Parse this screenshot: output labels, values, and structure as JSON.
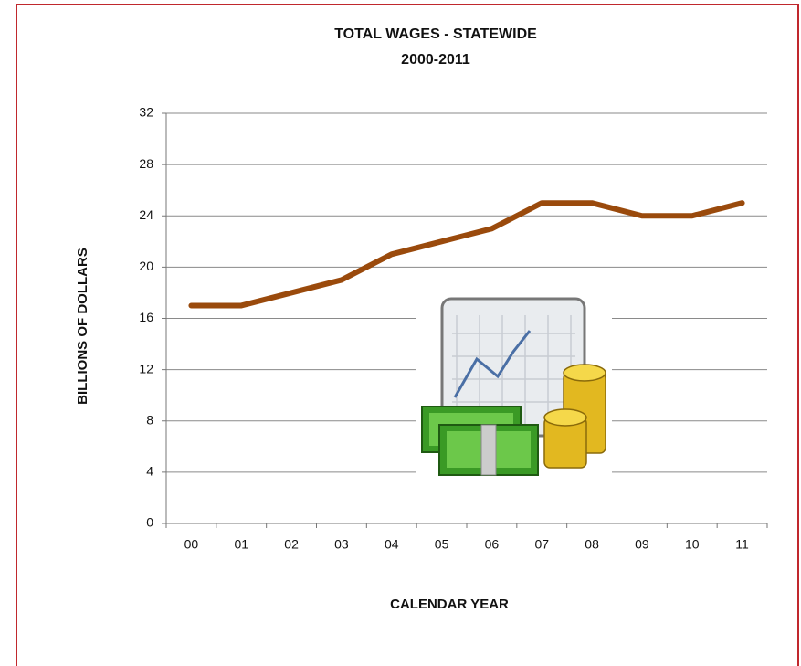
{
  "chart_data": {
    "type": "line",
    "title": "TOTAL WAGES - STATEWIDE",
    "subtitle": "2000-2011",
    "x_label": "CALENDAR YEAR",
    "y_label": "BILLIONS OF DOLLARS",
    "categories": [
      "00",
      "01",
      "02",
      "03",
      "04",
      "05",
      "06",
      "07",
      "08",
      "09",
      "10",
      "11"
    ],
    "values": [
      17,
      17,
      18,
      19,
      21,
      22,
      23,
      25,
      25,
      24,
      24,
      25
    ],
    "color": "#9a4a0c",
    "ylim": [
      0,
      32
    ],
    "yticks": [
      0,
      4,
      8,
      12,
      16,
      20,
      24,
      28,
      32
    ],
    "grid": true
  }
}
